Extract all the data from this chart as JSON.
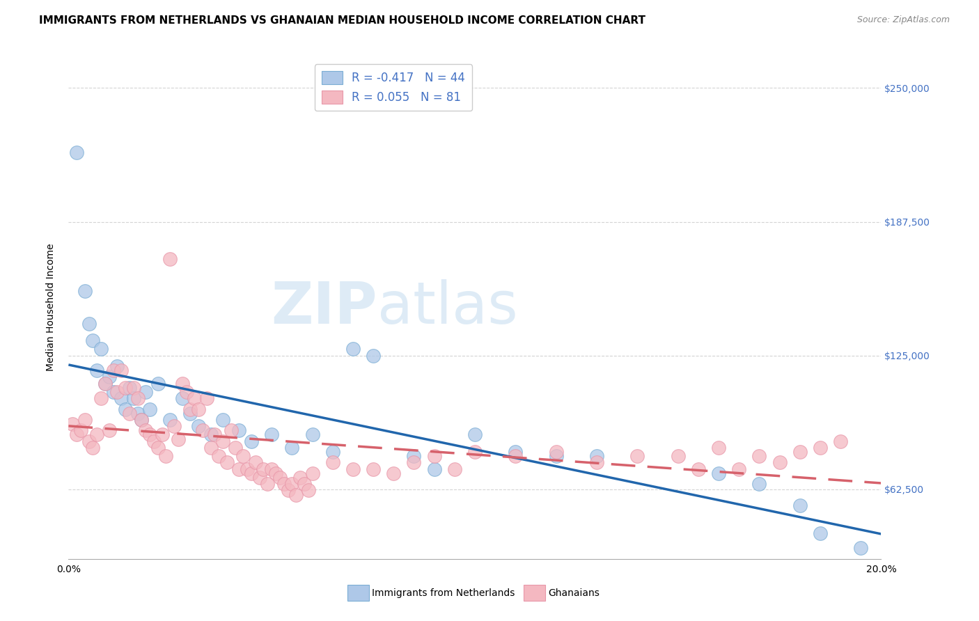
{
  "title": "IMMIGRANTS FROM NETHERLANDS VS GHANAIAN MEDIAN HOUSEHOLD INCOME CORRELATION CHART",
  "source": "Source: ZipAtlas.com",
  "ylabel": "Median Household Income",
  "ylim": [
    30000,
    265000
  ],
  "xlim": [
    0.0,
    0.2
  ],
  "ytick_positions": [
    62500,
    125000,
    187500,
    250000
  ],
  "ytick_labels": [
    "$62,500",
    "$125,000",
    "$187,500",
    "$250,000"
  ],
  "xtick_positions": [
    0.0,
    0.05,
    0.1,
    0.15,
    0.2
  ],
  "xtick_labels": [
    "0.0%",
    "",
    "",
    "",
    "20.0%"
  ],
  "watermark_zip": "ZIP",
  "watermark_atlas": "atlas",
  "legend_blue_r": "-0.417",
  "legend_blue_n": "44",
  "legend_pink_r": "0.055",
  "legend_pink_n": "81",
  "legend_blue_label": "Immigrants from Netherlands",
  "legend_pink_label": "Ghanaians",
  "blue_fill_color": "#aec8e8",
  "blue_edge_color": "#7aadd4",
  "pink_fill_color": "#f4b8c1",
  "pink_edge_color": "#e896a8",
  "blue_line_color": "#2166ac",
  "pink_line_color": "#d6616b",
  "background_color": "#ffffff",
  "grid_color": "#d0d0d0",
  "right_axis_color": "#4472c4",
  "blue_scatter": [
    [
      0.002,
      220000
    ],
    [
      0.004,
      155000
    ],
    [
      0.005,
      140000
    ],
    [
      0.006,
      132000
    ],
    [
      0.007,
      118000
    ],
    [
      0.008,
      128000
    ],
    [
      0.009,
      112000
    ],
    [
      0.01,
      115000
    ],
    [
      0.011,
      108000
    ],
    [
      0.012,
      120000
    ],
    [
      0.013,
      105000
    ],
    [
      0.014,
      100000
    ],
    [
      0.015,
      110000
    ],
    [
      0.016,
      105000
    ],
    [
      0.017,
      98000
    ],
    [
      0.018,
      95000
    ],
    [
      0.019,
      108000
    ],
    [
      0.02,
      100000
    ],
    [
      0.022,
      112000
    ],
    [
      0.025,
      95000
    ],
    [
      0.028,
      105000
    ],
    [
      0.03,
      98000
    ],
    [
      0.032,
      92000
    ],
    [
      0.035,
      88000
    ],
    [
      0.038,
      95000
    ],
    [
      0.042,
      90000
    ],
    [
      0.045,
      85000
    ],
    [
      0.05,
      88000
    ],
    [
      0.055,
      82000
    ],
    [
      0.06,
      88000
    ],
    [
      0.065,
      80000
    ],
    [
      0.07,
      128000
    ],
    [
      0.075,
      125000
    ],
    [
      0.085,
      78000
    ],
    [
      0.09,
      72000
    ],
    [
      0.1,
      88000
    ],
    [
      0.11,
      80000
    ],
    [
      0.12,
      78000
    ],
    [
      0.13,
      78000
    ],
    [
      0.16,
      70000
    ],
    [
      0.17,
      65000
    ],
    [
      0.18,
      55000
    ],
    [
      0.185,
      42000
    ],
    [
      0.195,
      35000
    ]
  ],
  "pink_scatter": [
    [
      0.001,
      93000
    ],
    [
      0.002,
      88000
    ],
    [
      0.003,
      90000
    ],
    [
      0.004,
      95000
    ],
    [
      0.005,
      85000
    ],
    [
      0.006,
      82000
    ],
    [
      0.007,
      88000
    ],
    [
      0.008,
      105000
    ],
    [
      0.009,
      112000
    ],
    [
      0.01,
      90000
    ],
    [
      0.011,
      118000
    ],
    [
      0.012,
      108000
    ],
    [
      0.013,
      118000
    ],
    [
      0.014,
      110000
    ],
    [
      0.015,
      98000
    ],
    [
      0.016,
      110000
    ],
    [
      0.017,
      105000
    ],
    [
      0.018,
      95000
    ],
    [
      0.019,
      90000
    ],
    [
      0.02,
      88000
    ],
    [
      0.021,
      85000
    ],
    [
      0.022,
      82000
    ],
    [
      0.023,
      88000
    ],
    [
      0.024,
      78000
    ],
    [
      0.025,
      170000
    ],
    [
      0.026,
      92000
    ],
    [
      0.027,
      86000
    ],
    [
      0.028,
      112000
    ],
    [
      0.029,
      108000
    ],
    [
      0.03,
      100000
    ],
    [
      0.031,
      105000
    ],
    [
      0.032,
      100000
    ],
    [
      0.033,
      90000
    ],
    [
      0.034,
      105000
    ],
    [
      0.035,
      82000
    ],
    [
      0.036,
      88000
    ],
    [
      0.037,
      78000
    ],
    [
      0.038,
      85000
    ],
    [
      0.039,
      75000
    ],
    [
      0.04,
      90000
    ],
    [
      0.041,
      82000
    ],
    [
      0.042,
      72000
    ],
    [
      0.043,
      78000
    ],
    [
      0.044,
      72000
    ],
    [
      0.045,
      70000
    ],
    [
      0.046,
      75000
    ],
    [
      0.047,
      68000
    ],
    [
      0.048,
      72000
    ],
    [
      0.049,
      65000
    ],
    [
      0.05,
      72000
    ],
    [
      0.051,
      70000
    ],
    [
      0.052,
      68000
    ],
    [
      0.053,
      65000
    ],
    [
      0.054,
      62000
    ],
    [
      0.055,
      65000
    ],
    [
      0.056,
      60000
    ],
    [
      0.057,
      68000
    ],
    [
      0.058,
      65000
    ],
    [
      0.059,
      62000
    ],
    [
      0.06,
      70000
    ],
    [
      0.065,
      75000
    ],
    [
      0.07,
      72000
    ],
    [
      0.075,
      72000
    ],
    [
      0.08,
      70000
    ],
    [
      0.085,
      75000
    ],
    [
      0.09,
      78000
    ],
    [
      0.095,
      72000
    ],
    [
      0.1,
      80000
    ],
    [
      0.11,
      78000
    ],
    [
      0.12,
      80000
    ],
    [
      0.13,
      75000
    ],
    [
      0.14,
      78000
    ],
    [
      0.15,
      78000
    ],
    [
      0.155,
      72000
    ],
    [
      0.16,
      82000
    ],
    [
      0.165,
      72000
    ],
    [
      0.17,
      78000
    ],
    [
      0.175,
      75000
    ],
    [
      0.18,
      80000
    ],
    [
      0.185,
      82000
    ],
    [
      0.19,
      85000
    ]
  ]
}
